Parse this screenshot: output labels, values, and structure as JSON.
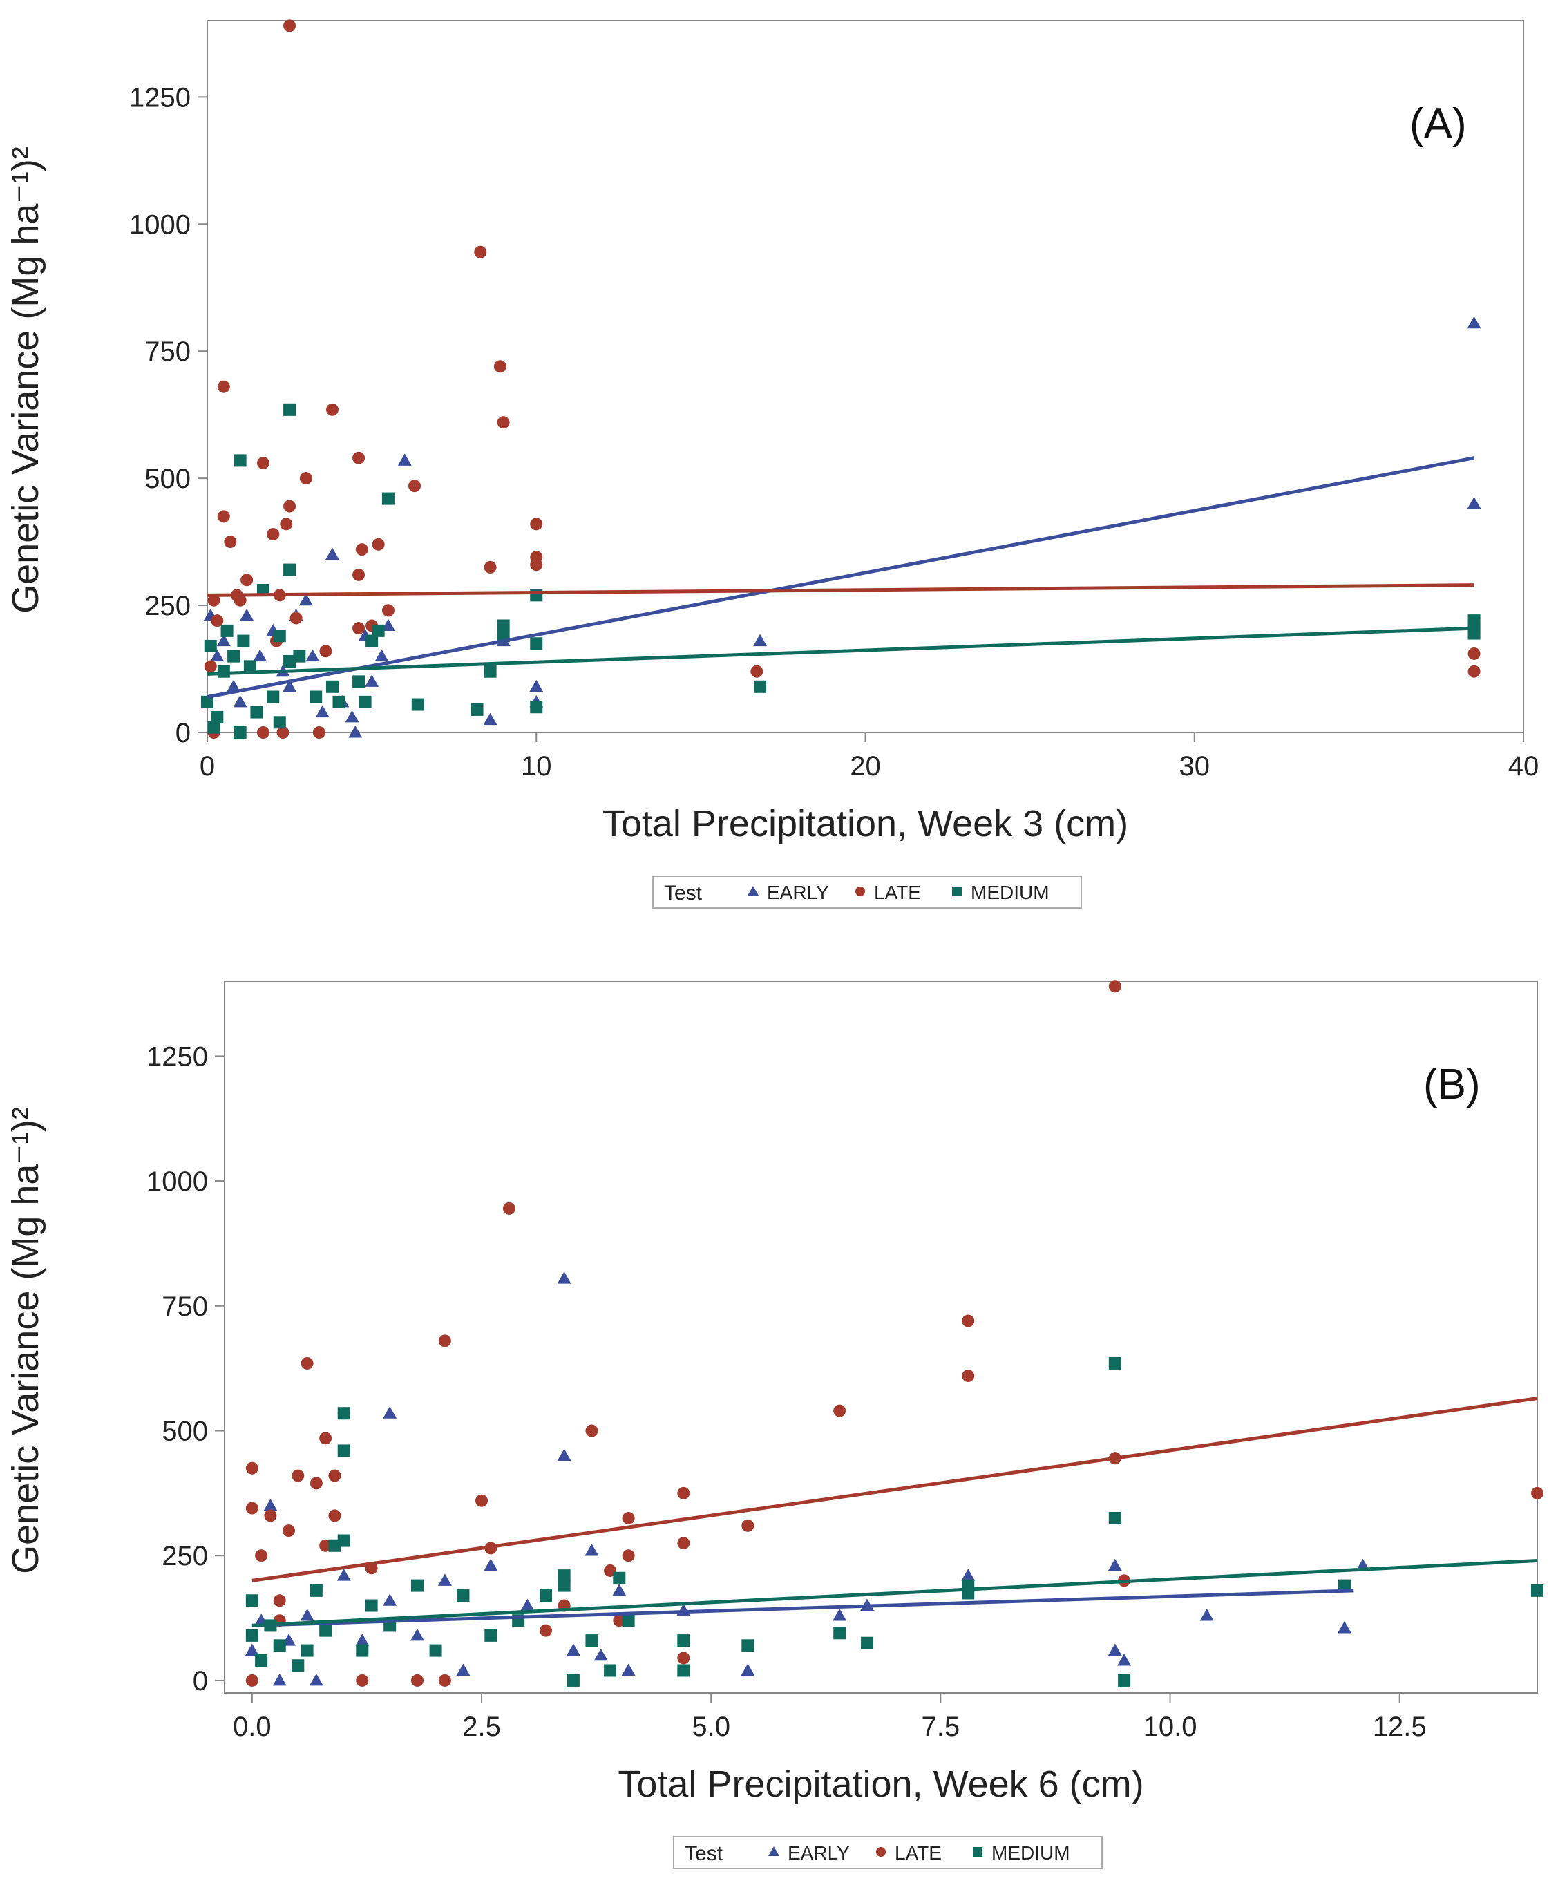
{
  "colors": {
    "early": "#3B4E9C",
    "late": "#A53A2C",
    "medium": "#0E6B5E",
    "axis": "#888888",
    "text": "#222222"
  },
  "chart_data": [
    {
      "type": "scatter",
      "panel_label": "(A)",
      "xlabel": "Total Precipitation, Week 3 (cm)",
      "ylabel": "Genetic Variance (Mg ha⁻¹)²",
      "xlim": [
        0,
        40
      ],
      "ylim": [
        0,
        1400
      ],
      "xticks": [
        0,
        10,
        20,
        30,
        40
      ],
      "xtick_labels": [
        "0",
        "10",
        "20",
        "30",
        "40"
      ],
      "yticks": [
        0,
        250,
        500,
        750,
        1000,
        1250
      ],
      "ytick_labels": [
        "0",
        "250",
        "500",
        "750",
        "1000",
        "1250"
      ],
      "legend": {
        "title": "Test",
        "entries": [
          "EARLY",
          "LATE",
          "MEDIUM"
        ],
        "position": "bottom"
      },
      "series": [
        {
          "name": "EARLY",
          "marker": "triangle",
          "points": [
            [
              0.1,
              230
            ],
            [
              0.3,
              150
            ],
            [
              0.5,
              180
            ],
            [
              0.8,
              90
            ],
            [
              1.2,
              230
            ],
            [
              1.6,
              150
            ],
            [
              2.0,
              200
            ],
            [
              2.3,
              120
            ],
            [
              2.7,
              230
            ],
            [
              3.0,
              260
            ],
            [
              3.2,
              150
            ],
            [
              3.8,
              350
            ],
            [
              4.1,
              60
            ],
            [
              4.4,
              30
            ],
            [
              4.5,
              0
            ],
            [
              4.8,
              190
            ],
            [
              5.0,
              100
            ],
            [
              5.3,
              150
            ],
            [
              5.5,
              210
            ],
            [
              6.0,
              535
            ],
            [
              3.5,
              40
            ],
            [
              8.6,
              25
            ],
            [
              9.0,
              180
            ],
            [
              10.0,
              90
            ],
            [
              10.0,
              60
            ],
            [
              16.8,
              180
            ],
            [
              38.5,
              805
            ],
            [
              38.5,
              450
            ],
            [
              1.0,
              60
            ],
            [
              2.5,
              90
            ]
          ],
          "fit": [
            [
              0,
              70
            ],
            [
              38.5,
              540
            ]
          ]
        },
        {
          "name": "LATE",
          "marker": "circle",
          "points": [
            [
              0.1,
              130
            ],
            [
              0.2,
              260
            ],
            [
              0.3,
              220
            ],
            [
              0.5,
              680
            ],
            [
              0.5,
              425
            ],
            [
              0.7,
              375
            ],
            [
              0.9,
              270
            ],
            [
              1.0,
              260
            ],
            [
              1.2,
              300
            ],
            [
              1.7,
              530
            ],
            [
              2.0,
              390
            ],
            [
              2.2,
              270
            ],
            [
              2.4,
              410
            ],
            [
              2.5,
              1390
            ],
            [
              2.5,
              445
            ],
            [
              2.7,
              225
            ],
            [
              3.0,
              500
            ],
            [
              3.8,
              635
            ],
            [
              4.6,
              540
            ],
            [
              4.6,
              310
            ],
            [
              4.7,
              360
            ],
            [
              5.0,
              210
            ],
            [
              5.2,
              370
            ],
            [
              5.5,
              240
            ],
            [
              6.3,
              485
            ],
            [
              8.3,
              945
            ],
            [
              8.9,
              720
            ],
            [
              9.0,
              610
            ],
            [
              8.6,
              325
            ],
            [
              10.0,
              410
            ],
            [
              10.0,
              345
            ],
            [
              10.0,
              330
            ],
            [
              16.7,
              120
            ],
            [
              38.5,
              155
            ],
            [
              38.5,
              120
            ],
            [
              0.2,
              0
            ],
            [
              1.7,
              0
            ],
            [
              2.3,
              0
            ],
            [
              3.4,
              0
            ],
            [
              4.6,
              205
            ],
            [
              2.1,
              180
            ],
            [
              3.6,
              160
            ]
          ],
          "fit": [
            [
              0,
              270
            ],
            [
              38.5,
              290
            ]
          ]
        },
        {
          "name": "MEDIUM",
          "marker": "square",
          "points": [
            [
              0.0,
              60
            ],
            [
              0.1,
              170
            ],
            [
              0.2,
              10
            ],
            [
              0.5,
              120
            ],
            [
              0.6,
              200
            ],
            [
              0.8,
              150
            ],
            [
              1.0,
              535
            ],
            [
              1.0,
              0
            ],
            [
              1.1,
              180
            ],
            [
              1.3,
              130
            ],
            [
              1.7,
              280
            ],
            [
              2.0,
              70
            ],
            [
              2.2,
              190
            ],
            [
              2.5,
              635
            ],
            [
              2.5,
              320
            ],
            [
              2.5,
              140
            ],
            [
              2.8,
              150
            ],
            [
              3.3,
              70
            ],
            [
              3.8,
              90
            ],
            [
              4.0,
              60
            ],
            [
              4.6,
              100
            ],
            [
              4.8,
              60
            ],
            [
              5.0,
              180
            ],
            [
              5.2,
              200
            ],
            [
              5.5,
              460
            ],
            [
              6.4,
              55
            ],
            [
              8.2,
              45
            ],
            [
              8.6,
              120
            ],
            [
              9.0,
              210
            ],
            [
              9.0,
              190
            ],
            [
              10.0,
              270
            ],
            [
              10.0,
              175
            ],
            [
              10.0,
              50
            ],
            [
              16.8,
              90
            ],
            [
              38.5,
              220
            ],
            [
              38.5,
              205
            ],
            [
              38.5,
              195
            ],
            [
              0.3,
              30
            ],
            [
              1.5,
              40
            ],
            [
              2.2,
              20
            ]
          ],
          "fit": [
            [
              0,
              115
            ],
            [
              38.5,
              205
            ]
          ]
        }
      ]
    },
    {
      "type": "scatter",
      "panel_label": "(B)",
      "xlabel": "Total Precipitation, Week 6 (cm)",
      "ylabel": "Genetic Variance (Mg ha⁻¹)²",
      "xlim": [
        -0.3,
        14
      ],
      "ylim": [
        -25,
        1400
      ],
      "xticks": [
        0,
        2.5,
        5,
        7.5,
        10,
        12.5
      ],
      "xtick_labels": [
        "0.0",
        "2.5",
        "5.0",
        "7.5",
        "10.0",
        "12.5"
      ],
      "yticks": [
        0,
        250,
        500,
        750,
        1000,
        1250
      ],
      "ytick_labels": [
        "0",
        "250",
        "500",
        "750",
        "1000",
        "1250"
      ],
      "legend": {
        "title": "Test",
        "entries": [
          "EARLY",
          "LATE",
          "MEDIUM"
        ],
        "position": "bottom"
      },
      "series": [
        {
          "name": "EARLY",
          "marker": "triangle",
          "points": [
            [
              0.0,
              60
            ],
            [
              0.1,
              120
            ],
            [
              0.2,
              350
            ],
            [
              0.3,
              0
            ],
            [
              0.4,
              80
            ],
            [
              0.6,
              130
            ],
            [
              0.7,
              0
            ],
            [
              1.0,
              210
            ],
            [
              1.2,
              80
            ],
            [
              1.5,
              535
            ],
            [
              1.5,
              160
            ],
            [
              1.8,
              90
            ],
            [
              2.1,
              200
            ],
            [
              2.3,
              20
            ],
            [
              2.6,
              230
            ],
            [
              3.0,
              150
            ],
            [
              3.4,
              805
            ],
            [
              3.4,
              450
            ],
            [
              3.5,
              60
            ],
            [
              3.7,
              260
            ],
            [
              3.8,
              50
            ],
            [
              4.0,
              180
            ],
            [
              4.1,
              20
            ],
            [
              4.7,
              140
            ],
            [
              5.4,
              20
            ],
            [
              6.4,
              130
            ],
            [
              6.7,
              150
            ],
            [
              7.8,
              210
            ],
            [
              9.4,
              230
            ],
            [
              9.4,
              60
            ],
            [
              9.5,
              40
            ],
            [
              10.4,
              130
            ],
            [
              11.9,
              105
            ],
            [
              12.1,
              230
            ]
          ],
          "fit": [
            [
              0,
              110
            ],
            [
              12.0,
              180
            ]
          ]
        },
        {
          "name": "LATE",
          "marker": "circle",
          "points": [
            [
              0.0,
              425
            ],
            [
              0.0,
              345
            ],
            [
              0.1,
              250
            ],
            [
              0.2,
              330
            ],
            [
              0.3,
              160
            ],
            [
              0.4,
              300
            ],
            [
              0.5,
              410
            ],
            [
              0.6,
              635
            ],
            [
              0.7,
              395
            ],
            [
              0.8,
              485
            ],
            [
              0.8,
              270
            ],
            [
              0.9,
              410
            ],
            [
              0.9,
              330
            ],
            [
              1.0,
              535
            ],
            [
              1.2,
              0
            ],
            [
              1.3,
              225
            ],
            [
              2.1,
              680
            ],
            [
              2.5,
              360
            ],
            [
              2.6,
              265
            ],
            [
              2.8,
              945
            ],
            [
              3.2,
              100
            ],
            [
              3.4,
              150
            ],
            [
              3.7,
              500
            ],
            [
              3.9,
              220
            ],
            [
              4.0,
              120
            ],
            [
              4.1,
              250
            ],
            [
              4.1,
              325
            ],
            [
              4.7,
              375
            ],
            [
              4.7,
              275
            ],
            [
              4.7,
              45
            ],
            [
              5.4,
              310
            ],
            [
              6.4,
              540
            ],
            [
              7.8,
              720
            ],
            [
              7.8,
              610
            ],
            [
              9.4,
              1390
            ],
            [
              9.4,
              445
            ],
            [
              9.5,
              200
            ],
            [
              14.0,
              375
            ],
            [
              0.0,
              0
            ],
            [
              1.8,
              0
            ],
            [
              2.1,
              0
            ],
            [
              0.3,
              120
            ]
          ],
          "fit": [
            [
              0,
              200
            ],
            [
              14,
              565
            ]
          ]
        },
        {
          "name": "MEDIUM",
          "marker": "square",
          "points": [
            [
              0.0,
              160
            ],
            [
              0.0,
              90
            ],
            [
              0.1,
              40
            ],
            [
              0.2,
              110
            ],
            [
              0.3,
              70
            ],
            [
              0.5,
              30
            ],
            [
              0.6,
              60
            ],
            [
              0.7,
              180
            ],
            [
              0.8,
              100
            ],
            [
              0.9,
              270
            ],
            [
              1.0,
              535
            ],
            [
              1.0,
              460
            ],
            [
              1.0,
              280
            ],
            [
              1.2,
              60
            ],
            [
              1.3,
              150
            ],
            [
              1.5,
              110
            ],
            [
              1.8,
              190
            ],
            [
              2.0,
              60
            ],
            [
              2.3,
              170
            ],
            [
              2.6,
              90
            ],
            [
              2.9,
              120
            ],
            [
              3.2,
              170
            ],
            [
              3.4,
              210
            ],
            [
              3.4,
              190
            ],
            [
              3.5,
              0
            ],
            [
              3.7,
              80
            ],
            [
              3.9,
              20
            ],
            [
              4.0,
              205
            ],
            [
              4.1,
              120
            ],
            [
              4.7,
              80
            ],
            [
              4.7,
              20
            ],
            [
              5.4,
              70
            ],
            [
              6.4,
              95
            ],
            [
              6.7,
              75
            ],
            [
              7.8,
              190
            ],
            [
              7.8,
              175
            ],
            [
              9.4,
              635
            ],
            [
              9.4,
              325
            ],
            [
              9.5,
              0
            ],
            [
              11.9,
              190
            ],
            [
              14.0,
              180
            ]
          ],
          "fit": [
            [
              0,
              110
            ],
            [
              14,
              240
            ]
          ]
        }
      ]
    }
  ]
}
